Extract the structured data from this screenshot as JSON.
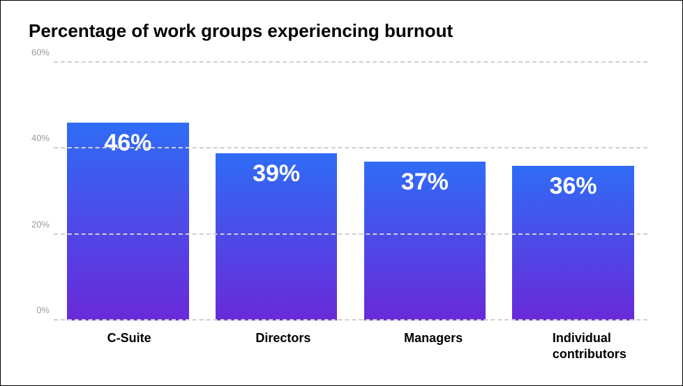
{
  "chart": {
    "type": "bar",
    "title": "Percentage of work groups experiencing burnout",
    "title_fontsize": 26,
    "title_color": "#000000",
    "background_color": "#ffffff",
    "border_color": "#000000",
    "ylim": [
      0,
      60
    ],
    "yticks": [
      0,
      20,
      40,
      60
    ],
    "ytick_labels": [
      "0%",
      "20%",
      "40%",
      "60%"
    ],
    "ytick_color": "#9a9a9a",
    "ytick_fontsize": 13,
    "grid_color": "#cfcfcf",
    "grid_style": "dashed",
    "bar_width": 0.82,
    "bar_gradient_top": "#2f6cf6",
    "bar_gradient_bottom": "#6a29d9",
    "value_label_color": "#ffffff",
    "value_label_fontsize": 34,
    "value_label_fontweight": 700,
    "x_label_fontsize": 18,
    "x_label_fontweight": 700,
    "x_label_color": "#000000",
    "data": [
      {
        "category": "C-Suite",
        "value": 46,
        "display": "46%"
      },
      {
        "category": "Directors",
        "value": 39,
        "display": "39%"
      },
      {
        "category": "Managers",
        "value": 37,
        "display": "37%"
      },
      {
        "category": "Individual contributors",
        "value": 36,
        "display": "36%"
      }
    ]
  }
}
